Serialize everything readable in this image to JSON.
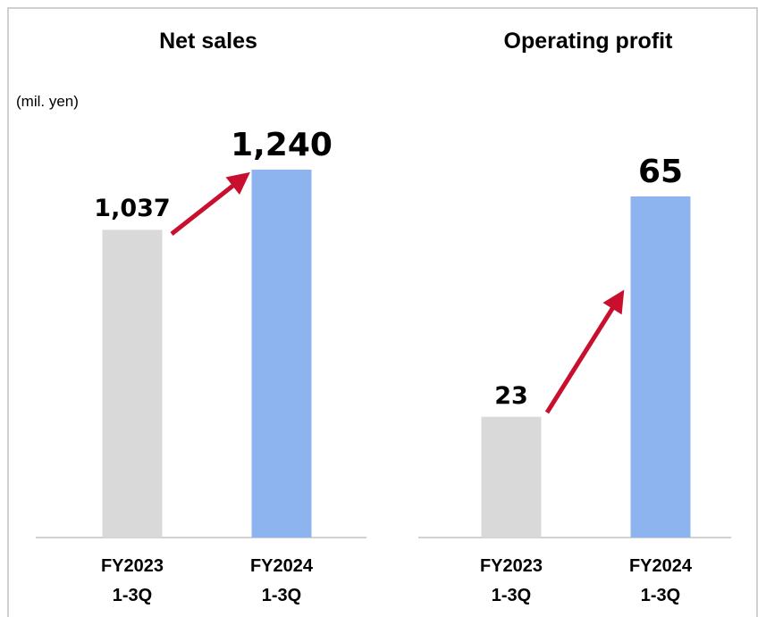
{
  "chart_data": [
    {
      "type": "bar",
      "title": "Net sales",
      "y_label": "(mil. yen)",
      "categories": [
        "FY2023\n1-3Q",
        "FY2024\n1-3Q"
      ],
      "values": [
        1037,
        1240
      ],
      "value_labels": [
        "1,037",
        "1,240"
      ],
      "colors": [
        "#d9d9d9",
        "#8db4ee"
      ]
    },
    {
      "type": "bar",
      "title": "Operating profit",
      "categories": [
        "FY2023\n1-3Q",
        "FY2024\n1-3Q"
      ],
      "values": [
        23,
        65
      ],
      "colors": [
        "#d9d9d9",
        "#8db4ee"
      ]
    }
  ]
}
